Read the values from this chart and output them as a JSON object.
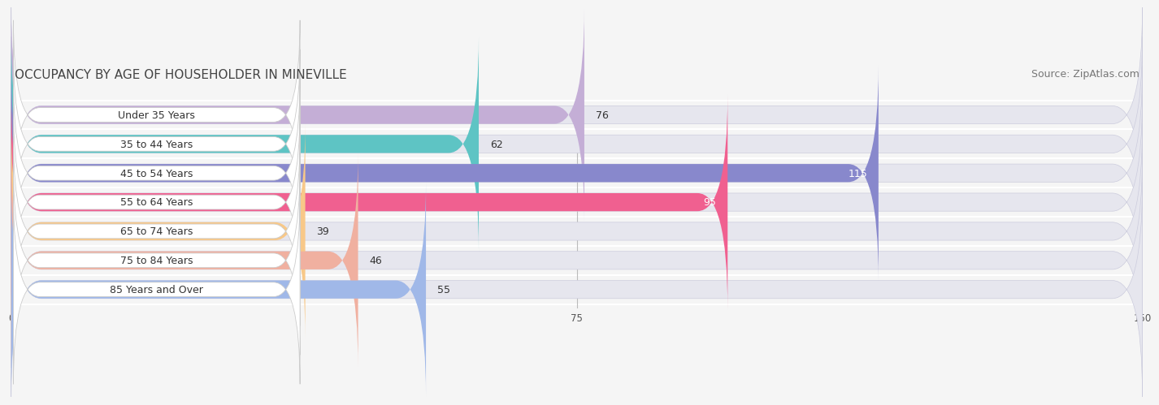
{
  "title": "OCCUPANCY BY AGE OF HOUSEHOLDER IN MINEVILLE",
  "source": "Source: ZipAtlas.com",
  "categories": [
    "Under 35 Years",
    "35 to 44 Years",
    "45 to 54 Years",
    "55 to 64 Years",
    "65 to 74 Years",
    "75 to 84 Years",
    "85 Years and Over"
  ],
  "values": [
    76,
    62,
    115,
    95,
    39,
    46,
    55
  ],
  "bar_colors": [
    "#c4aed6",
    "#5ec4c4",
    "#8888cc",
    "#f06090",
    "#f8c888",
    "#f0b0a0",
    "#a0b8e8"
  ],
  "value_text_inside": [
    false,
    false,
    true,
    true,
    false,
    false,
    false
  ],
  "xlim": [
    0,
    150
  ],
  "xticks": [
    0,
    75,
    150
  ],
  "title_fontsize": 11,
  "source_fontsize": 9,
  "label_fontsize": 9,
  "value_fontsize": 9,
  "bar_height": 0.62,
  "background_color": "#f5f5f5",
  "bar_bg_color": "#e6e6ee",
  "bar_border_color": "#ccccdd",
  "pill_bg": "#ffffff"
}
